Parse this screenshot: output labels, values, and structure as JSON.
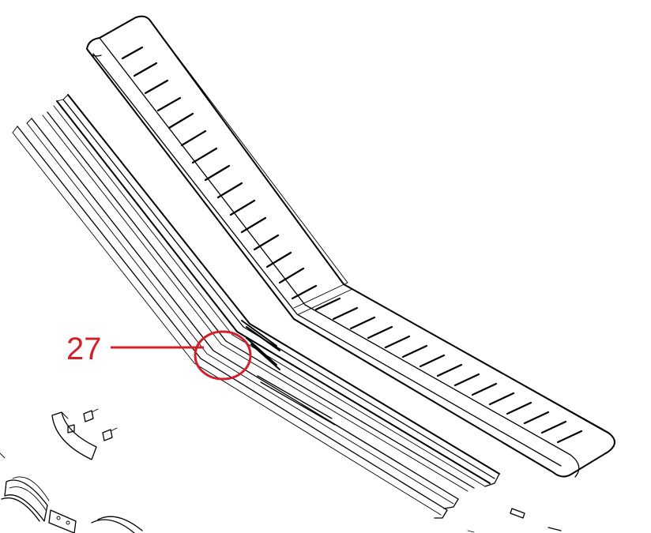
{
  "diagram": {
    "callout": {
      "number": "27",
      "color": "#d0202a"
    },
    "line_color": "#000000",
    "background": "#ffffff"
  }
}
